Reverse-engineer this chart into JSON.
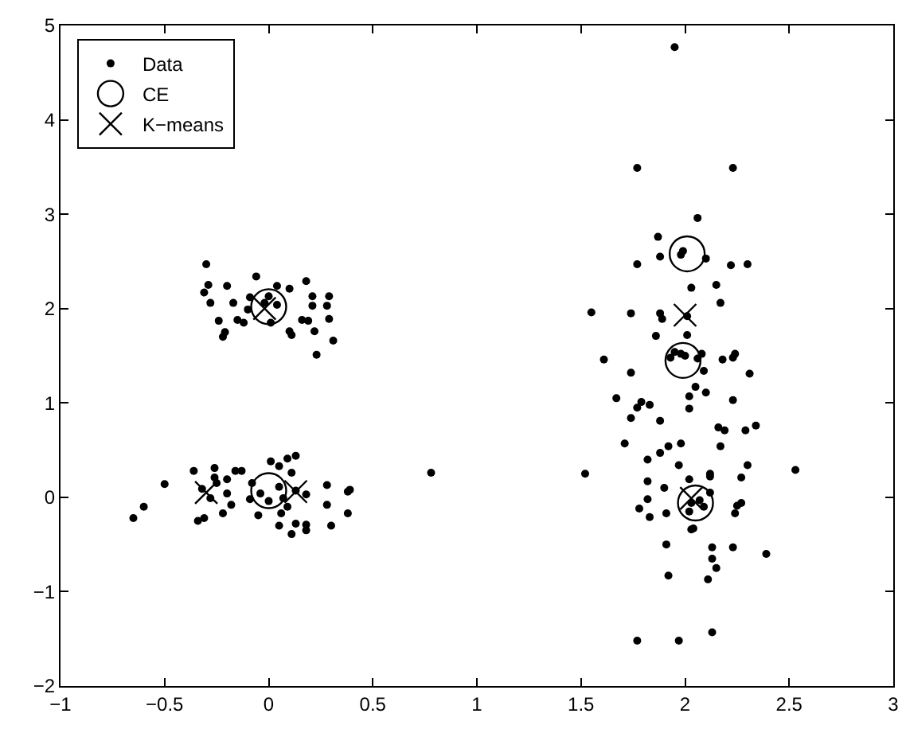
{
  "chart_data": {
    "type": "scatter",
    "xlim": [
      -1,
      3
    ],
    "xticks": [
      -1,
      -0.5,
      0,
      0.5,
      1,
      1.5,
      2,
      2.5,
      3
    ],
    "ylim": [
      -2,
      5
    ],
    "yticks": [
      -2,
      -1,
      0,
      1,
      2,
      3,
      4,
      5
    ],
    "legend": "top left",
    "series": [
      {
        "name": "Data",
        "color": "#000000",
        "marker": "circle",
        "x": [
          -0.5,
          -0.6,
          -0.65,
          -0.36,
          -0.26,
          -0.32,
          -0.26,
          -0.25,
          -0.2,
          -0.16,
          -0.13,
          -0.28,
          -0.2,
          -0.18,
          -0.22,
          -0.34,
          -0.31,
          -0.08,
          -0.09,
          -0.05,
          0.01,
          0.05,
          0.09,
          0.13,
          0.11,
          0.05,
          -0.04,
          0.0,
          0.07,
          0.09,
          0.13,
          0.18,
          0.06,
          0.05,
          0.11,
          0.13,
          0.18,
          0.18,
          0.28,
          0.28,
          0.3,
          0.38,
          0.39,
          0.38,
          0.78,
          -0.3,
          -0.29,
          -0.31,
          -0.28,
          -0.2,
          -0.17,
          -0.24,
          -0.21,
          -0.22,
          -0.15,
          -0.12,
          -0.1,
          -0.09,
          -0.06,
          -0.02,
          0.0,
          0.01,
          0.04,
          0.04,
          0.1,
          0.1,
          0.11,
          0.18,
          0.16,
          0.19,
          0.21,
          0.21,
          0.29,
          0.28,
          0.29,
          0.22,
          0.31,
          0.23,
          1.95,
          1.77,
          2.23,
          2.06,
          1.87,
          1.88,
          1.98,
          1.99,
          2.1,
          1.77,
          2.22,
          2.3,
          2.03,
          2.15,
          2.17,
          1.74,
          1.88,
          1.89,
          2.01,
          1.86,
          2.01,
          1.61,
          1.74,
          1.93,
          1.95,
          1.98,
          2.0,
          2.06,
          2.08,
          2.09,
          2.18,
          2.23,
          2.24,
          2.31,
          2.05,
          2.02,
          2.1,
          2.02,
          1.79,
          1.77,
          1.83,
          1.74,
          1.88,
          2.23,
          2.16,
          2.19,
          2.17,
          2.29,
          2.34,
          1.71,
          1.88,
          1.92,
          1.98,
          1.82,
          1.97,
          2.3,
          2.27,
          2.53,
          1.82,
          1.9,
          2.02,
          2.12,
          2.12,
          2.12,
          1.82,
          1.78,
          1.83,
          1.91,
          2.02,
          2.03,
          2.07,
          2.09,
          2.27,
          2.25,
          2.24,
          2.03,
          2.04,
          1.91,
          2.13,
          2.23,
          2.39,
          2.13,
          2.15,
          1.92,
          2.11,
          1.77,
          1.97,
          2.13,
          1.52,
          1.55,
          1.67
        ],
        "values": [
          0.14,
          -0.1,
          -0.22,
          0.28,
          0.31,
          0.09,
          0.21,
          0.15,
          0.19,
          0.28,
          0.28,
          -0.01,
          0.04,
          -0.08,
          -0.17,
          -0.25,
          -0.22,
          0.15,
          -0.02,
          -0.19,
          0.38,
          0.33,
          0.41,
          0.44,
          0.26,
          0.11,
          0.04,
          -0.04,
          -0.01,
          -0.1,
          0.07,
          0.03,
          -0.17,
          -0.3,
          -0.39,
          -0.28,
          -0.35,
          -0.29,
          0.13,
          -0.08,
          -0.3,
          0.06,
          0.08,
          -0.17,
          0.26,
          2.47,
          2.25,
          2.17,
          2.06,
          2.24,
          2.06,
          1.87,
          1.75,
          1.7,
          1.88,
          1.85,
          1.99,
          2.12,
          2.34,
          2.06,
          2.13,
          1.85,
          2.24,
          2.04,
          2.21,
          1.76,
          1.72,
          2.29,
          1.88,
          1.87,
          2.13,
          2.03,
          2.13,
          2.03,
          1.89,
          1.76,
          1.66,
          1.51,
          4.77,
          3.49,
          3.49,
          2.96,
          2.76,
          2.55,
          2.57,
          2.61,
          2.53,
          2.47,
          2.46,
          2.47,
          2.22,
          2.25,
          2.06,
          1.95,
          1.95,
          1.89,
          1.92,
          1.71,
          1.72,
          1.46,
          1.32,
          1.48,
          1.54,
          1.52,
          1.5,
          1.47,
          1.52,
          1.34,
          1.46,
          1.48,
          1.52,
          1.31,
          1.17,
          1.07,
          1.11,
          0.94,
          1.01,
          0.95,
          0.98,
          0.84,
          0.81,
          1.03,
          0.74,
          0.71,
          0.54,
          0.71,
          0.76,
          0.57,
          0.47,
          0.54,
          0.57,
          0.4,
          0.34,
          0.34,
          0.21,
          0.29,
          0.17,
          0.1,
          0.19,
          0.25,
          0.22,
          0.05,
          -0.02,
          -0.12,
          -0.21,
          -0.17,
          -0.15,
          -0.06,
          -0.03,
          -0.1,
          -0.06,
          -0.09,
          -0.17,
          -0.34,
          -0.33,
          -0.5,
          -0.53,
          -0.53,
          -0.6,
          -0.65,
          -0.75,
          -0.83,
          -0.87,
          -1.52,
          -1.52,
          -1.43,
          0.25,
          1.96,
          1.05
        ]
      },
      {
        "name": "CE",
        "color": "#000000",
        "marker": "circle",
        "x": [
          0.0,
          0.0,
          2.01,
          1.99,
          2.05
        ],
        "values": [
          2.02,
          0.07,
          2.58,
          1.45,
          -0.06
        ]
      },
      {
        "name": "K−means",
        "color": "#000000",
        "marker": "cross",
        "x": [
          -0.3,
          0.13,
          -0.02,
          2.0,
          2.03
        ],
        "values": [
          0.05,
          0.06,
          2.0,
          1.93,
          -0.01
        ]
      }
    ]
  }
}
